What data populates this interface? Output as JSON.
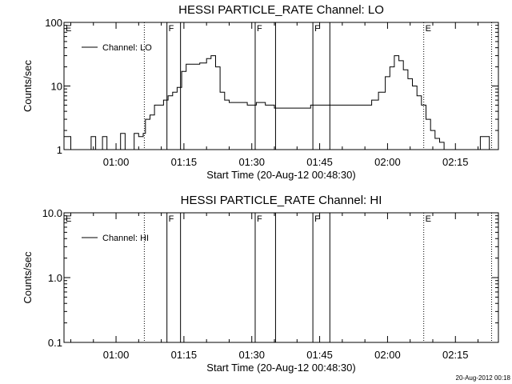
{
  "footer_timestamp": "20-Aug-2012 00:18",
  "chart_data": [
    {
      "type": "line",
      "title": "HESSI PARTICLE_RATE Channel: LO",
      "xlabel": "Start Time (20-Aug-12 00:48:30)",
      "ylabel": "Counts/sec",
      "y_scale": "log",
      "xlim": [
        "00:48:30",
        "02:24:30"
      ],
      "ylim": [
        1,
        100
      ],
      "x_ticks": [
        "01:00",
        "01:15",
        "01:30",
        "01:45",
        "02:00",
        "02:15"
      ],
      "y_ticks": [
        "1",
        "10",
        "100"
      ],
      "legend": {
        "position": "top-left",
        "entries": [
          "Channel: LO"
        ]
      },
      "markers": [
        {
          "label": "E",
          "time": "00:48:30",
          "style": "dotted"
        },
        {
          "label": "",
          "time": "01:06:15",
          "style": "dotted"
        },
        {
          "label": "F",
          "time": "01:11:15",
          "style": "solid"
        },
        {
          "label": "",
          "time": "01:14:15",
          "style": "solid"
        },
        {
          "label": "F",
          "time": "01:30:45",
          "style": "solid"
        },
        {
          "label": "",
          "time": "01:35:15",
          "style": "solid"
        },
        {
          "label": "F",
          "time": "01:43:30",
          "style": "solid"
        },
        {
          "label": "",
          "time": "01:47:15",
          "style": "solid"
        },
        {
          "label": "E",
          "time": "02:08:00",
          "style": "dotted"
        },
        {
          "label": "",
          "time": "02:23:00",
          "style": "dotted"
        }
      ],
      "series": [
        {
          "name": "Channel: LO",
          "x": [
            "00:48:30",
            "00:50:00",
            "00:51:30",
            "00:52:30",
            "00:53:30",
            "00:54:30",
            "00:55:30",
            "00:56:00",
            "00:57:00",
            "00:58:00",
            "00:59:00",
            "01:00:00",
            "01:01:00",
            "01:02:00",
            "01:03:00",
            "01:04:00",
            "01:05:00",
            "01:06:00",
            "01:06:30",
            "01:07:30",
            "01:08:30",
            "01:09:30",
            "01:10:30",
            "01:11:30",
            "01:12:30",
            "01:13:30",
            "01:14:30",
            "01:15:30",
            "01:17:00",
            "01:18:30",
            "01:20:00",
            "01:21:00",
            "01:22:00",
            "01:23:00",
            "01:24:00",
            "01:25:00",
            "01:27:00",
            "01:29:00",
            "01:31:00",
            "01:33:00",
            "01:35:00",
            "01:37:00",
            "01:39:00",
            "01:41:00",
            "01:43:00",
            "01:45:00",
            "01:47:00",
            "01:49:00",
            "01:51:00",
            "01:53:00",
            "01:55:00",
            "01:56:30",
            "01:58:00",
            "01:59:30",
            "02:00:30",
            "02:01:30",
            "02:02:30",
            "02:03:30",
            "02:04:30",
            "02:05:30",
            "02:06:30",
            "02:07:30",
            "02:08:30",
            "02:09:30",
            "02:10:30",
            "02:11:30",
            "02:12:30",
            "02:13:30",
            "02:14:30",
            "02:15:30",
            "02:16:30",
            "02:17:30",
            "02:18:30",
            "02:19:30",
            "02:20:30",
            "02:21:30",
            "02:22:30",
            "02:23:00"
          ],
          "y": [
            1.6,
            1,
            1,
            1,
            1,
            1.6,
            1,
            1,
            1.6,
            1,
            1,
            1,
            1.8,
            1,
            1,
            1.8,
            1.6,
            1.8,
            3,
            3.5,
            5,
            5,
            6,
            7,
            8,
            9.5,
            17,
            22,
            22,
            23,
            27,
            30,
            20,
            8,
            6,
            5.5,
            5.5,
            5,
            5.5,
            5,
            4.5,
            4.5,
            4.5,
            4.5,
            5,
            5,
            5,
            5,
            5,
            5,
            5,
            6,
            8,
            14,
            20,
            30,
            25,
            18,
            13,
            10,
            7,
            5,
            3,
            2,
            1.5,
            1.3,
            1,
            1,
            1,
            1,
            1,
            1,
            1,
            1,
            1.6,
            1.6,
            1,
            1
          ]
        }
      ]
    },
    {
      "type": "line",
      "title": "HESSI PARTICLE_RATE Channel: HI",
      "xlabel": "Start Time (20-Aug-12 00:48:30)",
      "ylabel": "Counts/sec",
      "y_scale": "log",
      "xlim": [
        "00:48:30",
        "02:24:30"
      ],
      "ylim": [
        0.1,
        10
      ],
      "x_ticks": [
        "01:00",
        "01:15",
        "01:30",
        "01:45",
        "02:00",
        "02:15"
      ],
      "y_ticks": [
        "0.1",
        "1.0",
        "10.0"
      ],
      "legend": {
        "position": "top-left",
        "entries": [
          "Channel: HI"
        ]
      },
      "markers": [
        {
          "label": "E",
          "time": "00:48:30",
          "style": "dotted"
        },
        {
          "label": "",
          "time": "01:06:15",
          "style": "dotted"
        },
        {
          "label": "F",
          "time": "01:11:15",
          "style": "solid"
        },
        {
          "label": "",
          "time": "01:14:15",
          "style": "solid"
        },
        {
          "label": "F",
          "time": "01:30:45",
          "style": "solid"
        },
        {
          "label": "",
          "time": "01:35:15",
          "style": "solid"
        },
        {
          "label": "F",
          "time": "01:43:30",
          "style": "solid"
        },
        {
          "label": "",
          "time": "01:47:15",
          "style": "solid"
        },
        {
          "label": "E",
          "time": "02:08:00",
          "style": "dotted"
        },
        {
          "label": "",
          "time": "02:23:00",
          "style": "dotted"
        }
      ],
      "series": [
        {
          "name": "Channel: HI",
          "x": [],
          "y": []
        }
      ]
    }
  ]
}
